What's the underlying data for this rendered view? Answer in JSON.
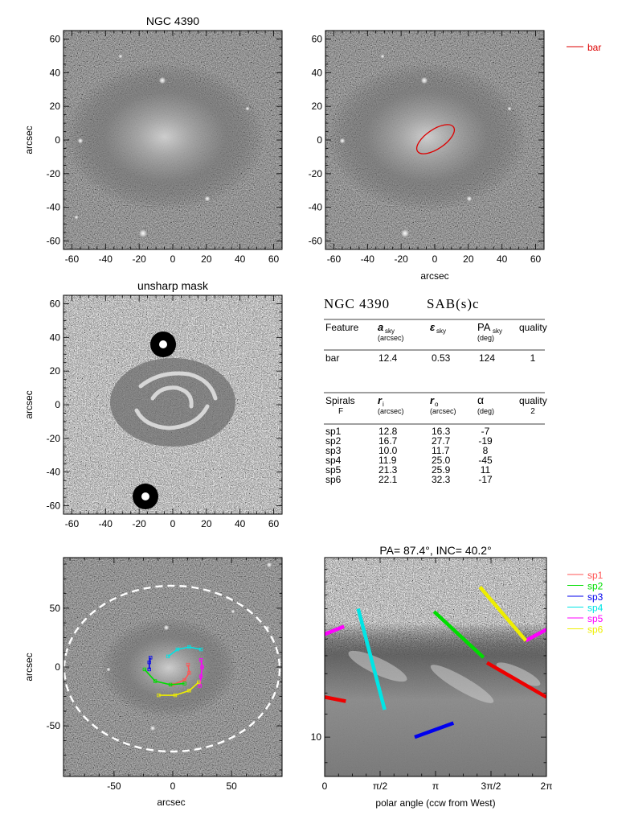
{
  "panels": {
    "p1": {
      "title": "NGC 4390",
      "ylabel": "arcsec",
      "xlabel": ""
    },
    "p2": {
      "title": "",
      "ylabel": "",
      "xlabel": "arcsec"
    },
    "p3": {
      "title": "unsharp mask",
      "ylabel": "arcsec",
      "xlabel": ""
    },
    "p5": {
      "title": "",
      "ylabel": "arcsec",
      "xlabel": "arcsec"
    },
    "p6": {
      "title": "PA=  87.4°, INC=  40.2°",
      "xlabel": "polar angle (ccw from West)"
    }
  },
  "legend_top": [
    {
      "label": "bar",
      "color": "#dd0000"
    }
  ],
  "legend_bottom": [
    {
      "label": "sp1",
      "color": "#ff5555"
    },
    {
      "label": "sp2",
      "color": "#00dd00"
    },
    {
      "label": "sp3",
      "color": "#0000ee"
    },
    {
      "label": "sp4",
      "color": "#00e5e5"
    },
    {
      "label": "sp5",
      "color": "#ff00ff"
    },
    {
      "label": "sp6",
      "color": "#eeee00"
    }
  ],
  "table": {
    "galaxy": "NGC 4390",
    "type": "SAB(s)c",
    "bar_header": {
      "c1": "Feature",
      "c2": "a",
      "c2sub": "sky",
      "c2unit": "(arcsec)",
      "c3": "ε",
      "c3sub": "sky",
      "c4": "PA",
      "c4sub": "sky",
      "c4unit": "(deg)",
      "c5": "quality"
    },
    "bar_row": {
      "c1": "bar",
      "c2": "12.4",
      "c3": "0.53",
      "c4": "124",
      "c5": "1"
    },
    "spiral_header": {
      "c1": "Spirals",
      "c1b": "F",
      "c2": "r",
      "c2sub": "i",
      "c2unit": "(arcsec)",
      "c3": "r",
      "c3sub": "o",
      "c3unit": "(arcsec)",
      "c4": "α",
      "c4unit": "(deg)",
      "c5": "quality",
      "c5b": "2"
    },
    "spiral_rows": [
      {
        "c1": "sp1",
        "c2": "12.8",
        "c3": "16.3",
        "c4": "-7"
      },
      {
        "c1": "sp2",
        "c2": "16.7",
        "c3": "27.7",
        "c4": "-19"
      },
      {
        "c1": "sp3",
        "c2": "10.0",
        "c3": "11.7",
        "c4": "8"
      },
      {
        "c1": "sp4",
        "c2": "11.9",
        "c3": "25.0",
        "c4": "-45"
      },
      {
        "c1": "sp5",
        "c2": "21.3",
        "c3": "25.9",
        "c4": "11"
      },
      {
        "c1": "sp6",
        "c2": "22.1",
        "c3": "32.3",
        "c4": "-17"
      }
    ]
  },
  "chart_data": [
    {
      "type": "heatmap",
      "title": "NGC 4390",
      "ylabel": "arcsec",
      "xlim": [
        -65,
        65
      ],
      "ylim": [
        -65,
        65
      ],
      "xticks": [
        "-60",
        "-40",
        "-20",
        "0",
        "20",
        "40",
        "60"
      ],
      "yticks": [
        "-60",
        "-40",
        "-20",
        "0",
        "20",
        "40",
        "60"
      ]
    },
    {
      "type": "heatmap",
      "xlabel": "arcsec",
      "xlim": [
        -65,
        65
      ],
      "ylim": [
        -65,
        65
      ],
      "xticks": [
        "-60",
        "-40",
        "-20",
        "0",
        "20",
        "40",
        "60"
      ],
      "yticks": [
        "-60",
        "-40",
        "-20",
        "0",
        "20",
        "40",
        "60"
      ],
      "overlay": {
        "name": "bar",
        "shape": "ellipse",
        "semi_major_arcsec": 12.4,
        "ellipticity": 0.53,
        "pa_deg": 124
      }
    },
    {
      "type": "heatmap",
      "title": "unsharp mask",
      "ylabel": "arcsec",
      "xlim": [
        -65,
        65
      ],
      "ylim": [
        -65,
        65
      ],
      "xticks": [
        "-60",
        "-40",
        "-20",
        "0",
        "20",
        "40",
        "60"
      ],
      "yticks": [
        "-60",
        "-40",
        "-20",
        "0",
        "20",
        "40",
        "60"
      ]
    },
    {
      "type": "heatmap",
      "xlabel": "arcsec",
      "ylabel": "arcsec",
      "xlim": [
        -93,
        93
      ],
      "ylim": [
        -93,
        93
      ],
      "xticks": [
        "-50",
        "0",
        "50"
      ],
      "yticks": [
        "-50",
        "0",
        "50"
      ],
      "annotation": "dashed ellipse (disk region)",
      "series": [
        {
          "name": "sp1",
          "points": [
            [
              0,
              -15
            ],
            [
              10,
              -11
            ],
            [
              14,
              -5
            ],
            [
              13,
              2
            ]
          ]
        },
        {
          "name": "sp2",
          "points": [
            [
              -24,
              -2
            ],
            [
              -15,
              -12
            ],
            [
              -2,
              -15
            ],
            [
              10,
              -14
            ]
          ]
        },
        {
          "name": "sp3",
          "points": [
            [
              -20,
              -2
            ],
            [
              -20,
              4
            ],
            [
              -19,
              8
            ]
          ]
        },
        {
          "name": "sp4",
          "points": [
            [
              -4,
              9
            ],
            [
              4,
              15
            ],
            [
              14,
              17
            ],
            [
              24,
              15
            ]
          ]
        },
        {
          "name": "sp5",
          "points": [
            [
              23,
              -16
            ],
            [
              24,
              -8
            ],
            [
              25,
              0
            ],
            [
              24,
              6
            ]
          ]
        },
        {
          "name": "sp6",
          "points": [
            [
              -12,
              -24
            ],
            [
              2,
              -24
            ],
            [
              14,
              -20
            ],
            [
              22,
              -13
            ]
          ]
        }
      ]
    },
    {
      "type": "line",
      "title": "PA=  87.4°, INC=  40.2°",
      "xlabel": "polar angle (ccw from West)",
      "xticks": [
        "0",
        "π/2",
        "π",
        "3π/2",
        "2π"
      ],
      "yticks": [
        "10"
      ],
      "ylog": true,
      "background": "heatmap (deprojected polar image)",
      "series": [
        {
          "name": "bar",
          "segments": [
            [
              [
                0.0,
                11.8
              ],
              [
                0.6,
                11.6
              ]
            ],
            [
              [
                6.28,
                11.8
              ],
              [
                4.6,
                13.6
              ]
            ]
          ]
        },
        {
          "name": "sp1",
          "points": []
        },
        {
          "name": "sp2",
          "points": [
            [
              3.1,
              16.8
            ],
            [
              4.5,
              13.9
            ]
          ]
        },
        {
          "name": "sp3",
          "points": [
            [
              2.55,
              10.0
            ],
            [
              3.65,
              10.6
            ]
          ]
        },
        {
          "name": "sp4",
          "points": [
            [
              0.95,
              17.0
            ],
            [
              1.7,
              11.2
            ]
          ]
        },
        {
          "name": "sp5",
          "segments": [
            [
              [
                0.0,
                15.3
              ],
              [
                0.55,
                15.8
              ]
            ],
            [
              [
                5.7,
                14.9
              ],
              [
                6.28,
                15.6
              ]
            ]
          ]
        },
        {
          "name": "sp6",
          "points": [
            [
              4.4,
              18.6
            ],
            [
              5.7,
              14.9
            ]
          ]
        }
      ]
    }
  ]
}
